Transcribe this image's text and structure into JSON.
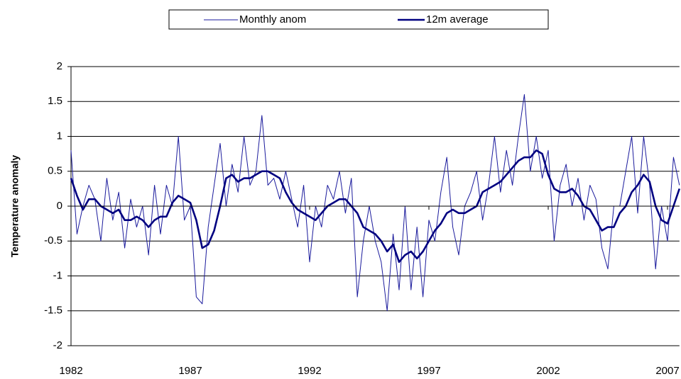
{
  "chart_data": {
    "type": "line",
    "y_label": "Temperature anomaly",
    "x": [
      1982,
      1982.25,
      1982.5,
      1982.75,
      1983,
      1983.25,
      1983.5,
      1983.75,
      1984,
      1984.25,
      1984.5,
      1984.75,
      1985,
      1985.25,
      1985.5,
      1985.75,
      1986,
      1986.25,
      1986.5,
      1986.75,
      1987,
      1987.25,
      1987.5,
      1987.75,
      1988,
      1988.25,
      1988.5,
      1988.75,
      1989,
      1989.25,
      1989.5,
      1989.75,
      1990,
      1990.25,
      1990.5,
      1990.75,
      1991,
      1991.25,
      1991.5,
      1991.75,
      1992,
      1992.25,
      1992.5,
      1992.75,
      1993,
      1993.25,
      1993.5,
      1993.75,
      1994,
      1994.25,
      1994.5,
      1994.75,
      1995,
      1995.25,
      1995.5,
      1995.75,
      1996,
      1996.25,
      1996.5,
      1996.75,
      1997,
      1997.25,
      1997.5,
      1997.75,
      1998,
      1998.25,
      1998.5,
      1998.75,
      1999,
      1999.25,
      1999.5,
      1999.75,
      2000,
      2000.25,
      2000.5,
      2000.75,
      2001,
      2001.25,
      2001.5,
      2001.75,
      2002,
      2002.25,
      2002.5,
      2002.75,
      2003,
      2003.25,
      2003.5,
      2003.75,
      2004,
      2004.25,
      2004.5,
      2004.75,
      2005,
      2005.25,
      2005.5,
      2005.75,
      2006,
      2006.25,
      2006.5,
      2006.75,
      2007,
      2007.25,
      2007.5
    ],
    "series": [
      {
        "name": "Monthly anom",
        "color": "#1a1a9c",
        "width": 1,
        "values": [
          0.8,
          -0.4,
          0.0,
          0.3,
          0.1,
          -0.5,
          0.4,
          -0.2,
          0.2,
          -0.6,
          0.1,
          -0.3,
          0.0,
          -0.7,
          0.3,
          -0.4,
          0.3,
          0.0,
          1.0,
          -0.2,
          0.0,
          -1.3,
          -1.4,
          -0.3,
          0.3,
          0.9,
          0.0,
          0.6,
          0.2,
          1.0,
          0.3,
          0.5,
          1.3,
          0.3,
          0.4,
          0.1,
          0.5,
          0.1,
          -0.3,
          0.3,
          -0.8,
          0.0,
          -0.3,
          0.3,
          0.1,
          0.5,
          -0.1,
          0.4,
          -1.3,
          -0.5,
          0.0,
          -0.5,
          -0.8,
          -1.5,
          -0.4,
          -1.2,
          0.0,
          -1.2,
          -0.3,
          -1.3,
          -0.2,
          -0.5,
          0.2,
          0.7,
          -0.3,
          -0.7,
          0.0,
          0.2,
          0.5,
          -0.2,
          0.3,
          1.0,
          0.2,
          0.8,
          0.3,
          1.0,
          1.6,
          0.5,
          1.0,
          0.4,
          0.8,
          -0.5,
          0.3,
          0.6,
          0.0,
          0.4,
          -0.2,
          0.3,
          0.1,
          -0.6,
          -0.9,
          0.0,
          0.0,
          0.5,
          1.0,
          -0.1,
          1.0,
          0.3,
          -0.9,
          0.0,
          -0.5,
          0.7,
          0.3
        ]
      },
      {
        "name": "12m average",
        "color": "#000080",
        "width": 2.6,
        "values": [
          0.4,
          0.15,
          -0.05,
          0.1,
          0.1,
          0.0,
          -0.05,
          -0.1,
          -0.05,
          -0.2,
          -0.2,
          -0.15,
          -0.2,
          -0.3,
          -0.2,
          -0.15,
          -0.15,
          0.05,
          0.15,
          0.1,
          0.05,
          -0.2,
          -0.6,
          -0.55,
          -0.35,
          0.0,
          0.4,
          0.45,
          0.35,
          0.4,
          0.4,
          0.45,
          0.5,
          0.5,
          0.45,
          0.4,
          0.2,
          0.05,
          -0.05,
          -0.1,
          -0.15,
          -0.2,
          -0.1,
          0.0,
          0.05,
          0.1,
          0.1,
          0.0,
          -0.1,
          -0.3,
          -0.35,
          -0.4,
          -0.5,
          -0.65,
          -0.55,
          -0.8,
          -0.7,
          -0.65,
          -0.75,
          -0.65,
          -0.5,
          -0.35,
          -0.25,
          -0.1,
          -0.05,
          -0.1,
          -0.1,
          -0.05,
          0.0,
          0.2,
          0.25,
          0.3,
          0.35,
          0.45,
          0.55,
          0.65,
          0.7,
          0.7,
          0.8,
          0.75,
          0.45,
          0.25,
          0.2,
          0.2,
          0.25,
          0.15,
          0.0,
          -0.05,
          -0.2,
          -0.35,
          -0.3,
          -0.3,
          -0.1,
          0.0,
          0.2,
          0.3,
          0.45,
          0.35,
          0.0,
          -0.2,
          -0.25,
          0.0,
          0.25
        ]
      }
    ],
    "xlim": [
      1982,
      2007.5
    ],
    "xticks": [
      1982,
      1987,
      1992,
      1997,
      2002,
      2007
    ],
    "ylim": [
      -2,
      2
    ],
    "yticks": [
      -2,
      -1.5,
      -1,
      -0.5,
      0,
      0.5,
      1,
      1.5,
      2
    ],
    "grid": true,
    "legend": "top"
  }
}
